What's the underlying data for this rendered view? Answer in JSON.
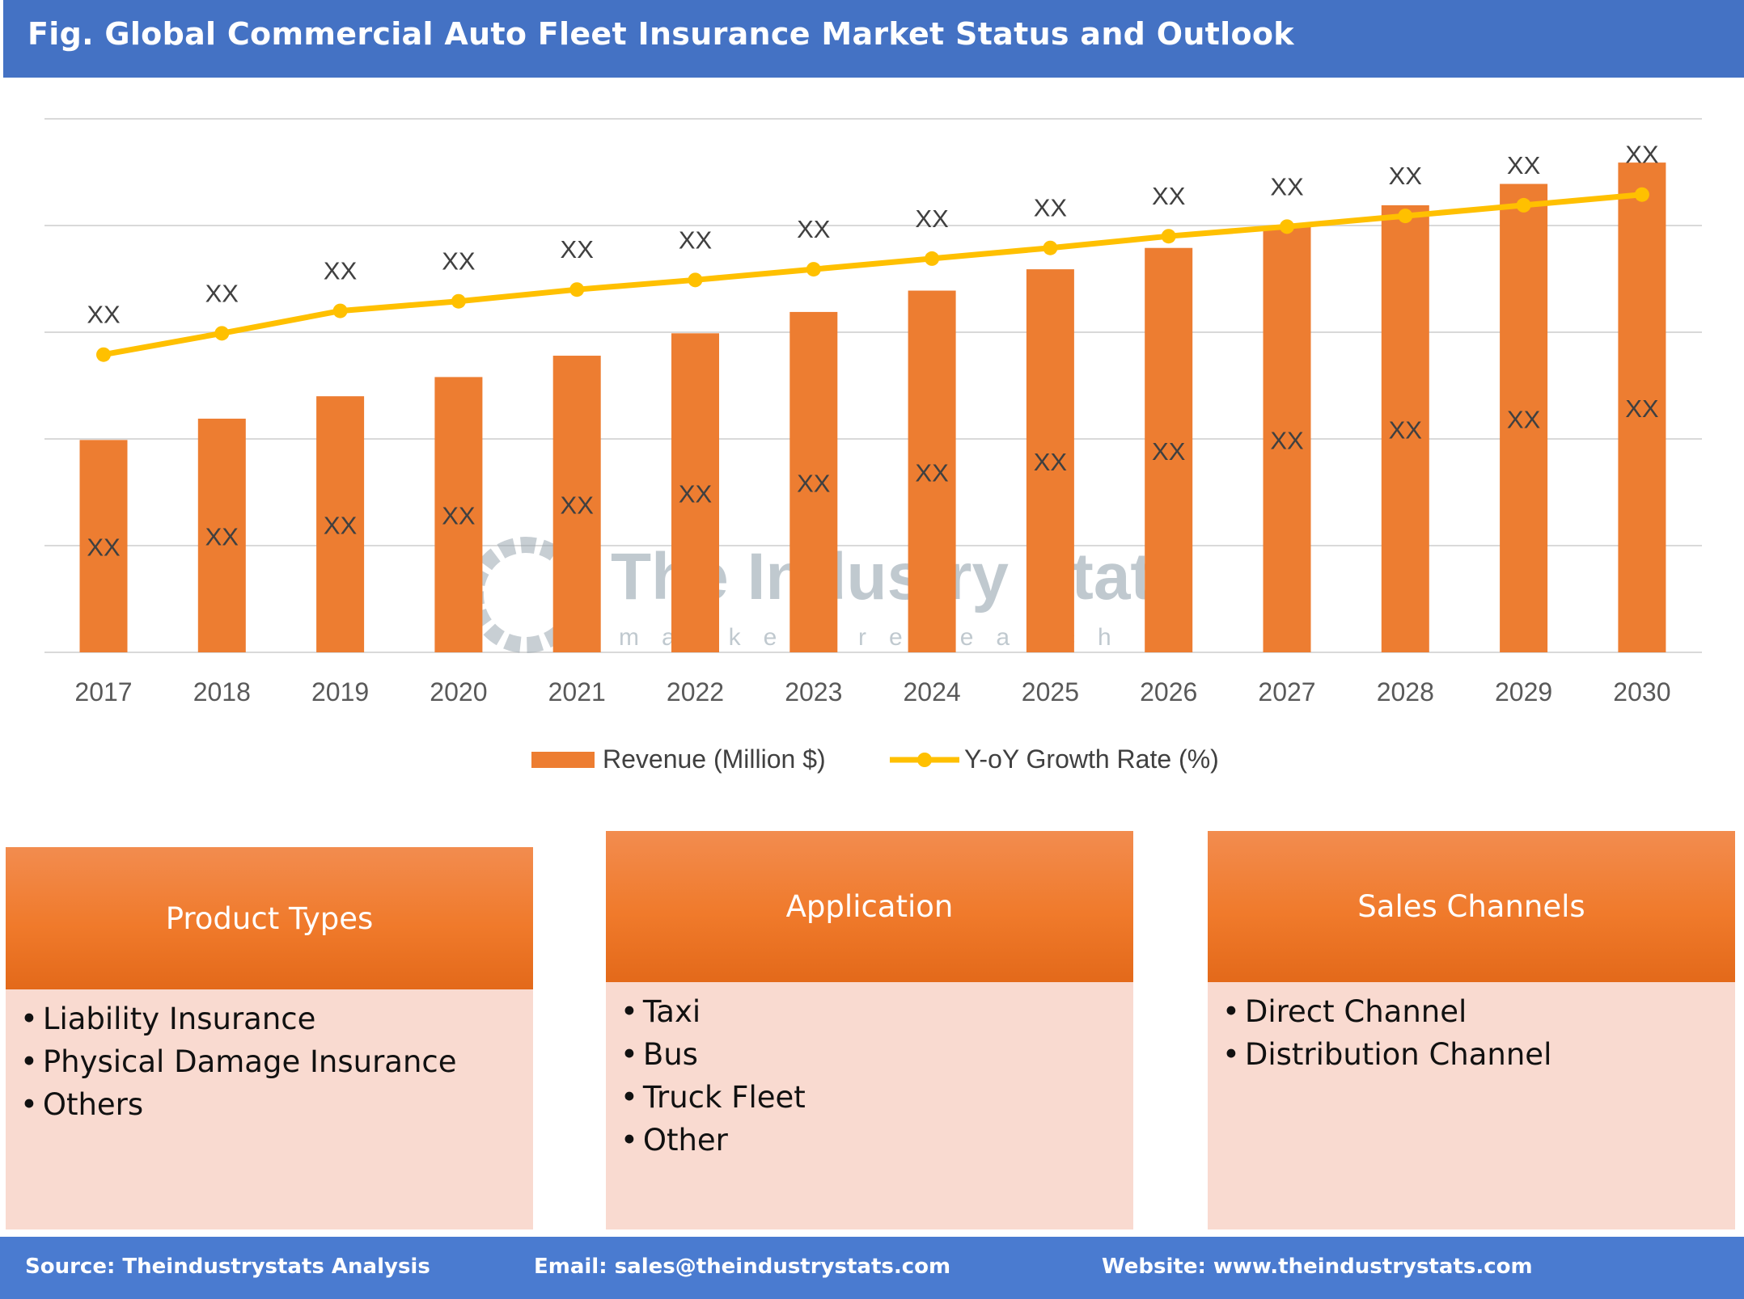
{
  "header": {
    "title": "Fig. Global Commercial Auto Fleet Insurance Market Status and Outlook"
  },
  "chart_data": {
    "type": "bar+line",
    "categories": [
      "2017",
      "2018",
      "2019",
      "2020",
      "2021",
      "2022",
      "2023",
      "2024",
      "2025",
      "2026",
      "2027",
      "2028",
      "2029",
      "2030"
    ],
    "series": [
      {
        "name": "Revenue (Million $)",
        "type": "bar",
        "color": "#ED7D31",
        "values": [
          1.99,
          2.19,
          2.4,
          2.58,
          2.78,
          2.99,
          3.19,
          3.39,
          3.59,
          3.79,
          3.99,
          4.19,
          4.39,
          4.59
        ],
        "data_labels": [
          "XX",
          "XX",
          "XX",
          "XX",
          "XX",
          "XX",
          "XX",
          "XX",
          "XX",
          "XX",
          "XX",
          "XX",
          "XX",
          "XX"
        ]
      },
      {
        "name": "Y-oY Growth Rate (%)",
        "type": "line",
        "color": "#FFC000",
        "values": [
          2.79,
          2.99,
          3.2,
          3.29,
          3.4,
          3.49,
          3.59,
          3.69,
          3.79,
          3.9,
          3.99,
          4.09,
          4.19,
          4.29
        ],
        "data_labels": [
          "XX",
          "XX",
          "XX",
          "XX",
          "XX",
          "XX",
          "XX",
          "XX",
          "XX",
          "XX",
          "XX",
          "XX",
          "XX",
          "XX"
        ]
      }
    ],
    "ylim": [
      0,
      5
    ],
    "grid": true,
    "y_axis_labels_shown": false,
    "legend": "bottom",
    "watermark": "The Industry Stats market research"
  },
  "segments": [
    {
      "title": "Product Types",
      "items": [
        "Liability Insurance",
        "Physical Damage Insurance",
        "Others"
      ]
    },
    {
      "title": "Application",
      "items": [
        "Taxi",
        "Bus",
        "Truck Fleet",
        "Other"
      ]
    },
    {
      "title": "Sales Channels",
      "items": [
        "Direct Channel",
        "Distribution Channel"
      ]
    }
  ],
  "footer": {
    "source": "Source: Theindustrystats Analysis",
    "email": "Email: sales@theindustrystats.com",
    "website": "Website: www.theindustrystats.com"
  }
}
